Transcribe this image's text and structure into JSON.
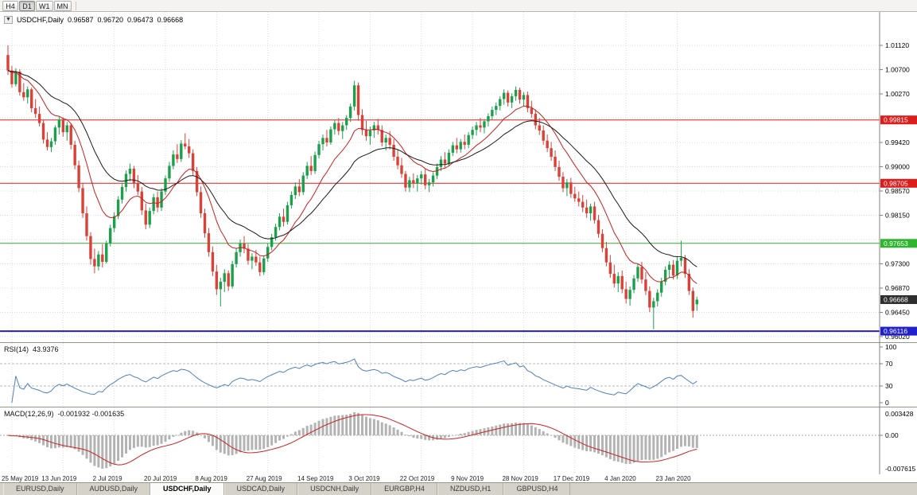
{
  "toolbar": {
    "timeframes": [
      {
        "label": "H4",
        "active": false
      },
      {
        "label": "D1",
        "active": true
      },
      {
        "label": "W1",
        "active": false
      },
      {
        "label": "MN",
        "active": false
      }
    ]
  },
  "chart_header": {
    "collapse_icon": "▼",
    "symbol_label": "USDCHF,Daily",
    "open": "0.96587",
    "high": "0.96720",
    "low": "0.96473",
    "close": "0.96668"
  },
  "indicators": {
    "rsi": {
      "name": "RSI(14)",
      "value": "43.9376",
      "period": 14,
      "level_labels": [
        "100",
        "70",
        "30",
        "0"
      ],
      "level_values": [
        100,
        70,
        30,
        0
      ],
      "guide_levels": [
        70,
        30
      ]
    },
    "macd": {
      "name": "MACD(12,26,9)",
      "value": "-0.001932 -0.001635",
      "fast": 12,
      "slow": 26,
      "signal": 9,
      "axis_labels": {
        "top": "0.003428",
        "zero": "0.00",
        "bottom": "-0.007615"
      }
    }
  },
  "tabs": [
    {
      "label": "EURUSD,Daily",
      "active": false
    },
    {
      "label": "AUDUSD,Daily",
      "active": false
    },
    {
      "label": "USDCHF,Daily",
      "active": true
    },
    {
      "label": "USDCAD,Daily",
      "active": false
    },
    {
      "label": "USDCNH,Daily",
      "active": false
    },
    {
      "label": "EURGBP,H4",
      "active": false
    },
    {
      "label": "NZDUSD,H1",
      "active": false
    },
    {
      "label": "GBPUSD,H4",
      "active": false
    }
  ],
  "chart_data": {
    "type": "candlestick",
    "title": "USDCHF,Daily",
    "symbol": "USDCHF",
    "timeframe": "Daily",
    "price_axis_labels": [
      {
        "t": "1.01120",
        "v": 1.0112
      },
      {
        "t": "1.00700",
        "v": 1.00695
      },
      {
        "t": "1.00270",
        "v": 1.0027
      },
      {
        "t": "0.99420",
        "v": 0.9942
      },
      {
        "t": "0.99000",
        "v": 0.98995
      },
      {
        "t": "0.98570",
        "v": 0.9857
      },
      {
        "t": "0.98150",
        "v": 0.98145
      },
      {
        "t": "0.97300",
        "v": 0.97295
      },
      {
        "t": "0.96870",
        "v": 0.9687
      },
      {
        "t": "0.96450",
        "v": 0.96445
      },
      {
        "t": "0.96020",
        "v": 0.9602
      }
    ],
    "grid_prices": [
      1.0112,
      1.00695,
      1.0027,
      0.99845,
      0.9942,
      0.98995,
      0.9857,
      0.98145,
      0.9772,
      0.97295,
      0.9687,
      0.96445,
      0.9602
    ],
    "levels": [
      {
        "price": 0.99815,
        "label": "0.99815",
        "color": "#dd1c1c",
        "width": 1
      },
      {
        "price": 0.98705,
        "label": "0.98705",
        "color": "#dd1c1c",
        "width": 1
      },
      {
        "price": 0.97653,
        "label": "0.97653",
        "color": "#2eb42e",
        "width": 1
      },
      {
        "price": 0.96116,
        "label": "0.96116",
        "color": "#2020cc",
        "width": 2
      }
    ],
    "current_price": {
      "label": "0.96668",
      "price": 0.96668,
      "bg": "#2e2e2e"
    },
    "time_labels": [
      {
        "t": "25 May 2019",
        "i": 1
      },
      {
        "t": "13 Jun 2019",
        "i": 14
      },
      {
        "t": "2 Jul 2019",
        "i": 27
      },
      {
        "t": "20 Jul 2019",
        "i": 40
      },
      {
        "t": "8 Aug 2019",
        "i": 53
      },
      {
        "t": "27 Aug 2019",
        "i": 66
      },
      {
        "t": "14 Sep 2019",
        "i": 79
      },
      {
        "t": "3 Oct 2019",
        "i": 92
      },
      {
        "t": "22 Oct 2019",
        "i": 105
      },
      {
        "t": "9 Nov 2019",
        "i": 118
      },
      {
        "t": "28 Nov 2019",
        "i": 131
      },
      {
        "t": "17 Dec 2019",
        "i": 144
      },
      {
        "t": "4 Jan 2020",
        "i": 157
      },
      {
        "t": "23 Jan 2020",
        "i": 170
      }
    ],
    "colors": {
      "bull": "#1ca04c",
      "bear": "#d84238",
      "ma_fast": "#c81e1e",
      "ma_slow": "#1a1a1a",
      "rsi": "#4f81bd",
      "rsi_guide": "#b8b8b8",
      "macd_hist": "#b3b3b3",
      "macd_signal": "#cc2222",
      "grid": "#dcdcdc",
      "axis": "#808080"
    },
    "candles": [
      [
        1.0095,
        1.0112,
        1.006,
        1.0068
      ],
      [
        1.0068,
        1.0076,
        1.0038,
        1.0044
      ],
      [
        1.0044,
        1.0072,
        1.004,
        1.0066
      ],
      [
        1.0066,
        1.007,
        1.0024,
        1.003
      ],
      [
        1.003,
        1.0046,
        1.0015,
        1.0021
      ],
      [
        1.0021,
        1.004,
        1.001,
        1.0035
      ],
      [
        1.0035,
        1.0038,
        0.9995,
        1.0002
      ],
      [
        1.0002,
        1.0018,
        0.9985,
        0.9992
      ],
      [
        0.9992,
        1.0005,
        0.997,
        0.9976
      ],
      [
        0.9976,
        0.9982,
        0.994,
        0.9947
      ],
      [
        0.9947,
        0.996,
        0.9928,
        0.9934
      ],
      [
        0.9934,
        0.995,
        0.9925,
        0.9944
      ],
      [
        0.9944,
        0.9972,
        0.9938,
        0.9968
      ],
      [
        0.9968,
        0.9987,
        0.9956,
        0.9982
      ],
      [
        0.9982,
        0.9986,
        0.9952,
        0.996
      ],
      [
        0.996,
        0.9978,
        0.9945,
        0.9972
      ],
      [
        0.9972,
        0.9975,
        0.993,
        0.9938
      ],
      [
        0.9938,
        0.9945,
        0.9895,
        0.9902
      ],
      [
        0.9902,
        0.991,
        0.9855,
        0.9862
      ],
      [
        0.9862,
        0.987,
        0.981,
        0.9818
      ],
      [
        0.9818,
        0.983,
        0.977,
        0.9778
      ],
      [
        0.9778,
        0.9785,
        0.9728,
        0.9738
      ],
      [
        0.9738,
        0.9756,
        0.9713,
        0.9725
      ],
      [
        0.9725,
        0.9752,
        0.9718,
        0.9746
      ],
      [
        0.9746,
        0.9764,
        0.9723,
        0.9733
      ],
      [
        0.9733,
        0.977,
        0.973,
        0.9765
      ],
      [
        0.9765,
        0.9798,
        0.976,
        0.9792
      ],
      [
        0.9792,
        0.982,
        0.9785,
        0.9813
      ],
      [
        0.9813,
        0.9848,
        0.9808,
        0.9842
      ],
      [
        0.9842,
        0.987,
        0.9835,
        0.9864
      ],
      [
        0.9864,
        0.9893,
        0.9856,
        0.9887
      ],
      [
        0.9887,
        0.9905,
        0.9874,
        0.9896
      ],
      [
        0.9896,
        0.9901,
        0.9862,
        0.987
      ],
      [
        0.987,
        0.9885,
        0.985,
        0.9856
      ],
      [
        0.9856,
        0.9864,
        0.9815,
        0.9823
      ],
      [
        0.9823,
        0.9835,
        0.979,
        0.9798
      ],
      [
        0.9798,
        0.9828,
        0.9792,
        0.9822
      ],
      [
        0.9822,
        0.9852,
        0.9816,
        0.9846
      ],
      [
        0.9846,
        0.9856,
        0.982,
        0.9828
      ],
      [
        0.9828,
        0.9862,
        0.9822,
        0.9856
      ],
      [
        0.9856,
        0.9884,
        0.985,
        0.9879
      ],
      [
        0.9879,
        0.9908,
        0.9873,
        0.9901
      ],
      [
        0.9901,
        0.9928,
        0.9895,
        0.9921
      ],
      [
        0.9921,
        0.9939,
        0.9906,
        0.9913
      ],
      [
        0.9913,
        0.9946,
        0.9908,
        0.994
      ],
      [
        0.994,
        0.9958,
        0.993,
        0.9935
      ],
      [
        0.9935,
        0.9948,
        0.9915,
        0.9923
      ],
      [
        0.9923,
        0.993,
        0.9885,
        0.9892
      ],
      [
        0.9892,
        0.9899,
        0.9848,
        0.9855
      ],
      [
        0.9855,
        0.9865,
        0.981,
        0.9818
      ],
      [
        0.9818,
        0.9826,
        0.9775,
        0.9783
      ],
      [
        0.9783,
        0.9792,
        0.9742,
        0.975
      ],
      [
        0.975,
        0.976,
        0.9708,
        0.9716
      ],
      [
        0.9716,
        0.9728,
        0.9675,
        0.9685
      ],
      [
        0.9685,
        0.9705,
        0.9655,
        0.9698
      ],
      [
        0.9698,
        0.972,
        0.968,
        0.9713
      ],
      [
        0.9713,
        0.9718,
        0.9682,
        0.969
      ],
      [
        0.969,
        0.9735,
        0.9686,
        0.9729
      ],
      [
        0.9729,
        0.9756,
        0.9723,
        0.975
      ],
      [
        0.975,
        0.9772,
        0.9742,
        0.9765
      ],
      [
        0.9765,
        0.9778,
        0.9748,
        0.9756
      ],
      [
        0.9756,
        0.9764,
        0.9728,
        0.9735
      ],
      [
        0.9735,
        0.9748,
        0.972,
        0.9742
      ],
      [
        0.9742,
        0.9754,
        0.9726,
        0.9732
      ],
      [
        0.9732,
        0.9742,
        0.9708,
        0.9715
      ],
      [
        0.9715,
        0.9744,
        0.971,
        0.9739
      ],
      [
        0.9739,
        0.9765,
        0.9733,
        0.9759
      ],
      [
        0.9759,
        0.9782,
        0.9753,
        0.9776
      ],
      [
        0.9776,
        0.98,
        0.977,
        0.9794
      ],
      [
        0.9794,
        0.9818,
        0.9788,
        0.9812
      ],
      [
        0.9812,
        0.9826,
        0.9795,
        0.9803
      ],
      [
        0.9803,
        0.9838,
        0.9798,
        0.9832
      ],
      [
        0.9832,
        0.9856,
        0.9826,
        0.985
      ],
      [
        0.985,
        0.9872,
        0.9843,
        0.9865
      ],
      [
        0.9865,
        0.9878,
        0.9848,
        0.9855
      ],
      [
        0.9855,
        0.989,
        0.985,
        0.9884
      ],
      [
        0.9884,
        0.9908,
        0.9878,
        0.9901
      ],
      [
        0.9901,
        0.9918,
        0.9885,
        0.9892
      ],
      [
        0.9892,
        0.9926,
        0.9887,
        0.992
      ],
      [
        0.992,
        0.9945,
        0.9914,
        0.9939
      ],
      [
        0.9939,
        0.9956,
        0.9928,
        0.995
      ],
      [
        0.995,
        0.9964,
        0.9935,
        0.9942
      ],
      [
        0.9942,
        0.997,
        0.9938,
        0.9965
      ],
      [
        0.9965,
        0.9982,
        0.9956,
        0.9976
      ],
      [
        0.9976,
        0.9985,
        0.9955,
        0.9962
      ],
      [
        0.9962,
        0.9978,
        0.9948,
        0.9972
      ],
      [
        0.9972,
        0.999,
        0.9964,
        0.9985
      ],
      [
        0.9985,
        1.001,
        0.9978,
        1.0005
      ],
      [
        1.0005,
        1.005,
        0.9998,
        1.0042
      ],
      [
        1.0042,
        1.0047,
        0.998,
        0.999
      ],
      [
        0.999,
        1.0,
        0.9955,
        0.9964
      ],
      [
        0.9964,
        0.998,
        0.9945,
        0.9953
      ],
      [
        0.9953,
        0.997,
        0.9938,
        0.9963
      ],
      [
        0.9963,
        0.9978,
        0.995,
        0.9972
      ],
      [
        0.9972,
        0.9983,
        0.9956,
        0.9964
      ],
      [
        0.9964,
        0.9972,
        0.9935,
        0.9942
      ],
      [
        0.9942,
        0.9956,
        0.9928,
        0.995
      ],
      [
        0.995,
        0.9962,
        0.993,
        0.9938
      ],
      [
        0.9938,
        0.9948,
        0.991,
        0.9917
      ],
      [
        0.9917,
        0.9929,
        0.9895,
        0.9902
      ],
      [
        0.9902,
        0.9915,
        0.988,
        0.9887
      ],
      [
        0.9887,
        0.9892,
        0.9856,
        0.9863
      ],
      [
        0.9863,
        0.9882,
        0.9855,
        0.9876
      ],
      [
        0.9876,
        0.9888,
        0.9862,
        0.987
      ],
      [
        0.987,
        0.9885,
        0.9856,
        0.9879
      ],
      [
        0.9879,
        0.9892,
        0.9868,
        0.9886
      ],
      [
        0.9886,
        0.9895,
        0.986,
        0.9867
      ],
      [
        0.9867,
        0.9878,
        0.9855,
        0.9872
      ],
      [
        0.9872,
        0.989,
        0.9865,
        0.9884
      ],
      [
        0.9884,
        0.9905,
        0.9878,
        0.9899
      ],
      [
        0.9899,
        0.9918,
        0.9892,
        0.9912
      ],
      [
        0.9912,
        0.9925,
        0.9898,
        0.9905
      ],
      [
        0.9905,
        0.993,
        0.99,
        0.9924
      ],
      [
        0.9924,
        0.9943,
        0.9918,
        0.9937
      ],
      [
        0.9937,
        0.995,
        0.9923,
        0.993
      ],
      [
        0.993,
        0.9948,
        0.9924,
        0.9943
      ],
      [
        0.9943,
        0.9956,
        0.993,
        0.9938
      ],
      [
        0.9938,
        0.996,
        0.9932,
        0.9955
      ],
      [
        0.9955,
        0.997,
        0.9948,
        0.9964
      ],
      [
        0.9964,
        0.9978,
        0.9954,
        0.9972
      ],
      [
        0.9972,
        0.9985,
        0.996,
        0.9968
      ],
      [
        0.9968,
        0.9983,
        0.9958,
        0.9979
      ],
      [
        0.9979,
        0.9993,
        0.997,
        0.9988
      ],
      [
        0.9988,
        1.0005,
        0.9982,
        0.9999
      ],
      [
        0.9999,
        1.0012,
        0.999,
        1.0006
      ],
      [
        1.0006,
        1.0023,
        0.9998,
        1.0018
      ],
      [
        1.0018,
        1.0035,
        1.0008,
        1.0029
      ],
      [
        1.0029,
        1.0033,
        1.0005,
        1.0012
      ],
      [
        1.0012,
        1.0028,
        1.0002,
        1.0023
      ],
      [
        1.0023,
        1.004,
        1.0015,
        1.0034
      ],
      [
        1.0034,
        1.0038,
        1.001,
        1.0017
      ],
      [
        1.0017,
        1.003,
        1.0005,
        1.0025
      ],
      [
        1.0025,
        1.0031,
        0.9995,
        1.0002
      ],
      [
        1.0002,
        1.0015,
        0.9985,
        0.9992
      ],
      [
        0.9992,
        1.0,
        0.9965,
        0.9972
      ],
      [
        0.9972,
        0.9985,
        0.9955,
        0.9963
      ],
      [
        0.9963,
        0.9972,
        0.9938,
        0.9945
      ],
      [
        0.9945,
        0.9956,
        0.9925,
        0.9932
      ],
      [
        0.9932,
        0.9943,
        0.991,
        0.9917
      ],
      [
        0.9917,
        0.9928,
        0.9892,
        0.9899
      ],
      [
        0.9899,
        0.991,
        0.9875,
        0.9882
      ],
      [
        0.9882,
        0.989,
        0.9855,
        0.9862
      ],
      [
        0.9862,
        0.9878,
        0.9848,
        0.9872
      ],
      [
        0.9872,
        0.988,
        0.9845,
        0.9852
      ],
      [
        0.9852,
        0.9864,
        0.9838,
        0.9844
      ],
      [
        0.9844,
        0.9856,
        0.983,
        0.9838
      ],
      [
        0.9838,
        0.985,
        0.982,
        0.9828
      ],
      [
        0.9828,
        0.9842,
        0.981,
        0.9818
      ],
      [
        0.9818,
        0.9835,
        0.9805,
        0.983
      ],
      [
        0.983,
        0.9838,
        0.98,
        0.9806
      ],
      [
        0.9806,
        0.9815,
        0.9775,
        0.9782
      ],
      [
        0.9782,
        0.979,
        0.975,
        0.9757
      ],
      [
        0.9757,
        0.9768,
        0.9725,
        0.9732
      ],
      [
        0.9732,
        0.9745,
        0.9705,
        0.9712
      ],
      [
        0.9712,
        0.9728,
        0.9688,
        0.9695
      ],
      [
        0.9695,
        0.9715,
        0.968,
        0.9708
      ],
      [
        0.9708,
        0.9718,
        0.9678,
        0.9685
      ],
      [
        0.9685,
        0.9698,
        0.966,
        0.9668
      ],
      [
        0.9668,
        0.969,
        0.9656,
        0.9684
      ],
      [
        0.9684,
        0.971,
        0.9678,
        0.9704
      ],
      [
        0.9704,
        0.973,
        0.9698,
        0.9724
      ],
      [
        0.9724,
        0.9733,
        0.9695,
        0.9702
      ],
      [
        0.9702,
        0.9715,
        0.9675,
        0.9682
      ],
      [
        0.9682,
        0.969,
        0.9645,
        0.9653
      ],
      [
        0.9653,
        0.967,
        0.9615,
        0.9664
      ],
      [
        0.9664,
        0.9685,
        0.9655,
        0.9679
      ],
      [
        0.9679,
        0.9705,
        0.9672,
        0.9698
      ],
      [
        0.9698,
        0.9725,
        0.9692,
        0.9719
      ],
      [
        0.9719,
        0.9734,
        0.9705,
        0.9728
      ],
      [
        0.9728,
        0.9736,
        0.9702,
        0.9709
      ],
      [
        0.9709,
        0.9742,
        0.9703,
        0.9735
      ],
      [
        0.9735,
        0.977,
        0.9725,
        0.974
      ],
      [
        0.974,
        0.9745,
        0.9705,
        0.9712
      ],
      [
        0.9712,
        0.972,
        0.9675,
        0.9682
      ],
      [
        0.9682,
        0.9688,
        0.9635,
        0.9647
      ],
      [
        0.96587,
        0.9672,
        0.96473,
        0.96668
      ]
    ]
  }
}
